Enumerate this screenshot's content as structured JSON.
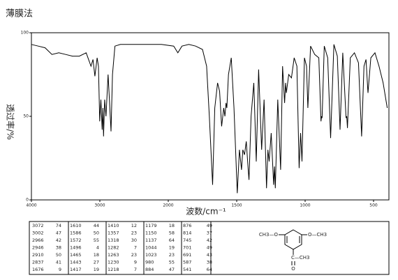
{
  "title": "薄膜法",
  "chart_data": {
    "type": "line",
    "xlabel": "波数/cm⁻¹",
    "ylabel": "透过率/%",
    "xlim": [
      4000,
      400
    ],
    "xticks": [
      4000,
      3000,
      2000,
      1500,
      1000,
      500
    ],
    "ylim": [
      0,
      100
    ],
    "yticks": [
      0,
      50,
      100
    ],
    "color": "#000000",
    "x": [
      4000,
      3900,
      3800,
      3700,
      3600,
      3500,
      3400,
      3300,
      3200,
      3130,
      3100,
      3072,
      3040,
      3020,
      3002,
      2985,
      2966,
      2955,
      2946,
      2930,
      2910,
      2880,
      2860,
      2837,
      2815,
      2780,
      2700,
      2500,
      2300,
      2100,
      1960,
      1930,
      1900,
      1850,
      1800,
      1750,
      1720,
      1700,
      1676,
      1660,
      1640,
      1625,
      1610,
      1595,
      1586,
      1578,
      1572,
      1560,
      1540,
      1520,
      1496,
      1480,
      1465,
      1455,
      1443,
      1430,
      1417,
      1410,
      1395,
      1375,
      1357,
      1340,
      1318,
      1300,
      1282,
      1272,
      1263,
      1248,
      1230,
      1224,
      1218,
      1200,
      1179,
      1165,
      1150,
      1143,
      1137,
      1120,
      1100,
      1080,
      1060,
      1044,
      1033,
      1023,
      1005,
      990,
      980,
      960,
      930,
      900,
      884,
      880,
      876,
      860,
      835,
      814,
      790,
      765,
      745,
      725,
      701,
      696,
      691,
      670,
      640,
      610,
      587,
      570,
      555,
      541,
      520,
      490,
      460,
      430,
      400
    ],
    "values": [
      93,
      92,
      91,
      87,
      88,
      87,
      86,
      86,
      88,
      80,
      84,
      74,
      85,
      80,
      47,
      60,
      42,
      55,
      38,
      60,
      50,
      75,
      60,
      41,
      75,
      92,
      93,
      93,
      93,
      93,
      92,
      88,
      92,
      93,
      92,
      90,
      80,
      50,
      9,
      55,
      70,
      65,
      44,
      55,
      50,
      58,
      55,
      75,
      85,
      55,
      4,
      30,
      18,
      30,
      27,
      35,
      19,
      12,
      50,
      70,
      23,
      78,
      30,
      60,
      7,
      30,
      23,
      40,
      9,
      20,
      7,
      60,
      18,
      80,
      58,
      70,
      64,
      75,
      73,
      85,
      80,
      19,
      40,
      23,
      85,
      80,
      55,
      92,
      87,
      85,
      47,
      50,
      49,
      92,
      85,
      37,
      93,
      86,
      42,
      88,
      49,
      50,
      43,
      85,
      88,
      82,
      38,
      80,
      84,
      64,
      85,
      88,
      80,
      70,
      55
    ]
  },
  "peak_table": {
    "rows": [
      [
        3072,
        74
      ],
      [
        3002,
        47
      ],
      [
        2966,
        42
      ],
      [
        2946,
        38
      ],
      [
        2910,
        50
      ],
      [
        2837,
        41
      ],
      [
        1676,
        9
      ],
      [
        1610,
        44
      ],
      [
        1586,
        50
      ],
      [
        1572,
        55
      ],
      [
        1496,
        4
      ],
      [
        1465,
        18
      ],
      [
        1443,
        27
      ],
      [
        1417,
        19
      ],
      [
        1410,
        12
      ],
      [
        1357,
        23
      ],
      [
        1318,
        30
      ],
      [
        1282,
        7
      ],
      [
        1263,
        23
      ],
      [
        1230,
        9
      ],
      [
        1218,
        7
      ],
      [
        1179,
        18
      ],
      [
        1150,
        58
      ],
      [
        1137,
        64
      ],
      [
        1044,
        19
      ],
      [
        1023,
        23
      ],
      [
        980,
        55
      ],
      [
        884,
        47
      ],
      [
        876,
        49
      ],
      [
        814,
        37
      ],
      [
        745,
        42
      ],
      [
        701,
        49
      ],
      [
        691,
        43
      ],
      [
        587,
        38
      ],
      [
        541,
        64
      ]
    ]
  },
  "structure": {
    "labels": [
      "CH3—O",
      "O—CH3",
      "C—CH3",
      "O"
    ]
  }
}
